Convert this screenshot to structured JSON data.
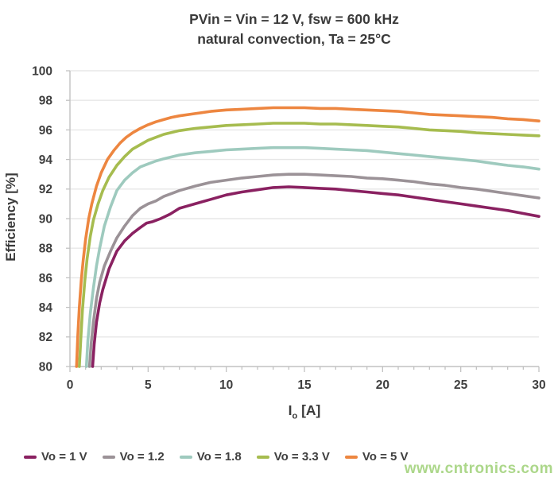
{
  "title": {
    "line1": "PVin = Vin = 12 V, fsw = 600 kHz",
    "line2": "natural convection, Ta = 25°C"
  },
  "watermark": {
    "text": "www.cntronics.com",
    "color": "#9ed075"
  },
  "chart_data": {
    "type": "line",
    "title": "PVin = Vin = 12 V, fsw = 600 kHz — natural convection, Ta = 25°C",
    "xlabel": "Io [A]",
    "xlabel_parts": {
      "base": "I",
      "sub": "o",
      "unit": " [A]"
    },
    "ylabel": "Efficiency [%]",
    "xlim": [
      0,
      30
    ],
    "ylim": [
      80,
      100
    ],
    "x_ticks": [
      0,
      5,
      10,
      15,
      20,
      25,
      30
    ],
    "x_minor_step": 1,
    "y_ticks": [
      80,
      82,
      84,
      86,
      88,
      90,
      92,
      94,
      96,
      98,
      100
    ],
    "grid": "horizontal",
    "legend_position": "bottom",
    "axis_color": "#c2c2c2",
    "grid_color": "#e7e7e7",
    "tick_text_color": "#3f3f3f",
    "series": [
      {
        "name": "Vo = 1 V",
        "color": "#8a2161",
        "points": [
          [
            1.45,
            80
          ],
          [
            1.55,
            81.5
          ],
          [
            1.7,
            83
          ],
          [
            1.9,
            84.3
          ],
          [
            2.1,
            85.2
          ],
          [
            2.5,
            86.6
          ],
          [
            3,
            87.8
          ],
          [
            3.5,
            88.5
          ],
          [
            4,
            89.0
          ],
          [
            4.5,
            89.4
          ],
          [
            4.9,
            89.7
          ],
          [
            5.3,
            89.8
          ],
          [
            5.8,
            90.0
          ],
          [
            6.4,
            90.3
          ],
          [
            7,
            90.7
          ],
          [
            7.5,
            90.85
          ],
          [
            8,
            91.0
          ],
          [
            9,
            91.3
          ],
          [
            10,
            91.6
          ],
          [
            11,
            91.8
          ],
          [
            12,
            91.95
          ],
          [
            13,
            92.1
          ],
          [
            14,
            92.15
          ],
          [
            15,
            92.1
          ],
          [
            16,
            92.05
          ],
          [
            17,
            92.0
          ],
          [
            18,
            91.9
          ],
          [
            19,
            91.8
          ],
          [
            20,
            91.7
          ],
          [
            21,
            91.6
          ],
          [
            22,
            91.45
          ],
          [
            23,
            91.3
          ],
          [
            24,
            91.15
          ],
          [
            25,
            91.0
          ],
          [
            26,
            90.85
          ],
          [
            27,
            90.7
          ],
          [
            28,
            90.55
          ],
          [
            29,
            90.35
          ],
          [
            30,
            90.15
          ]
        ]
      },
      {
        "name": "Vo = 1.2",
        "color": "#9b9297",
        "points": [
          [
            1.25,
            80
          ],
          [
            1.35,
            81.5
          ],
          [
            1.5,
            83
          ],
          [
            1.7,
            84.6
          ],
          [
            1.9,
            85.7
          ],
          [
            2.2,
            86.8
          ],
          [
            2.6,
            87.8
          ],
          [
            3,
            88.7
          ],
          [
            3.5,
            89.5
          ],
          [
            4,
            90.2
          ],
          [
            4.5,
            90.7
          ],
          [
            5,
            91.0
          ],
          [
            5.5,
            91.2
          ],
          [
            6,
            91.5
          ],
          [
            6.5,
            91.7
          ],
          [
            7,
            91.9
          ],
          [
            8,
            92.2
          ],
          [
            9,
            92.45
          ],
          [
            10,
            92.6
          ],
          [
            11,
            92.75
          ],
          [
            12,
            92.85
          ],
          [
            13,
            92.95
          ],
          [
            14,
            93.0
          ],
          [
            15,
            93.0
          ],
          [
            16,
            92.95
          ],
          [
            17,
            92.9
          ],
          [
            18,
            92.85
          ],
          [
            19,
            92.75
          ],
          [
            20,
            92.7
          ],
          [
            21,
            92.6
          ],
          [
            22,
            92.5
          ],
          [
            23,
            92.35
          ],
          [
            24,
            92.25
          ],
          [
            25,
            92.1
          ],
          [
            26,
            92.0
          ],
          [
            27,
            91.85
          ],
          [
            28,
            91.7
          ],
          [
            29,
            91.55
          ],
          [
            30,
            91.4
          ]
        ]
      },
      {
        "name": "Vo = 1.8",
        "color": "#9ecabe",
        "points": [
          [
            1.05,
            80
          ],
          [
            1.15,
            81.8
          ],
          [
            1.3,
            83.6
          ],
          [
            1.5,
            85.3
          ],
          [
            1.7,
            86.8
          ],
          [
            1.9,
            88.0
          ],
          [
            2.2,
            89.5
          ],
          [
            2.6,
            90.8
          ],
          [
            3,
            91.9
          ],
          [
            3.5,
            92.6
          ],
          [
            4,
            93.1
          ],
          [
            4.5,
            93.5
          ],
          [
            5,
            93.7
          ],
          [
            5.5,
            93.9
          ],
          [
            6,
            94.05
          ],
          [
            7,
            94.3
          ],
          [
            8,
            94.45
          ],
          [
            9,
            94.55
          ],
          [
            10,
            94.65
          ],
          [
            11,
            94.7
          ],
          [
            12,
            94.75
          ],
          [
            13,
            94.8
          ],
          [
            14,
            94.8
          ],
          [
            15,
            94.8
          ],
          [
            16,
            94.75
          ],
          [
            17,
            94.7
          ],
          [
            18,
            94.65
          ],
          [
            19,
            94.6
          ],
          [
            20,
            94.5
          ],
          [
            21,
            94.4
          ],
          [
            22,
            94.3
          ],
          [
            23,
            94.2
          ],
          [
            24,
            94.1
          ],
          [
            25,
            94.0
          ],
          [
            26,
            93.9
          ],
          [
            27,
            93.75
          ],
          [
            28,
            93.6
          ],
          [
            29,
            93.5
          ],
          [
            30,
            93.35
          ]
        ]
      },
      {
        "name": "Vo = 3.3 V",
        "color": "#a6bc4f",
        "points": [
          [
            0.6,
            80
          ],
          [
            0.7,
            82
          ],
          [
            0.8,
            83.8
          ],
          [
            0.95,
            85.8
          ],
          [
            1.1,
            87.3
          ],
          [
            1.3,
            88.8
          ],
          [
            1.5,
            89.9
          ],
          [
            1.8,
            91.0
          ],
          [
            2.1,
            91.9
          ],
          [
            2.5,
            92.8
          ],
          [
            3,
            93.6
          ],
          [
            3.5,
            94.2
          ],
          [
            4,
            94.7
          ],
          [
            4.5,
            95.0
          ],
          [
            5,
            95.3
          ],
          [
            5.5,
            95.5
          ],
          [
            6,
            95.7
          ],
          [
            7,
            95.95
          ],
          [
            8,
            96.1
          ],
          [
            9,
            96.2
          ],
          [
            10,
            96.3
          ],
          [
            11,
            96.35
          ],
          [
            12,
            96.4
          ],
          [
            13,
            96.45
          ],
          [
            14,
            96.45
          ],
          [
            15,
            96.45
          ],
          [
            16,
            96.4
          ],
          [
            17,
            96.4
          ],
          [
            18,
            96.35
          ],
          [
            19,
            96.3
          ],
          [
            20,
            96.25
          ],
          [
            21,
            96.2
          ],
          [
            22,
            96.1
          ],
          [
            23,
            96.0
          ],
          [
            24,
            95.95
          ],
          [
            25,
            95.9
          ],
          [
            26,
            95.8
          ],
          [
            27,
            95.75
          ],
          [
            28,
            95.7
          ],
          [
            29,
            95.65
          ],
          [
            30,
            95.6
          ]
        ]
      },
      {
        "name": "Vo = 5 V",
        "color": "#ed8640",
        "points": [
          [
            0.42,
            80
          ],
          [
            0.5,
            82
          ],
          [
            0.6,
            84
          ],
          [
            0.72,
            85.8
          ],
          [
            0.85,
            87.2
          ],
          [
            1,
            88.6
          ],
          [
            1.2,
            90.0
          ],
          [
            1.4,
            91.0
          ],
          [
            1.7,
            92.2
          ],
          [
            2,
            93.1
          ],
          [
            2.4,
            94.0
          ],
          [
            2.8,
            94.6
          ],
          [
            3.2,
            95.1
          ],
          [
            3.6,
            95.5
          ],
          [
            4,
            95.8
          ],
          [
            4.5,
            96.1
          ],
          [
            5,
            96.35
          ],
          [
            5.5,
            96.55
          ],
          [
            6,
            96.7
          ],
          [
            6.5,
            96.85
          ],
          [
            7,
            96.95
          ],
          [
            8,
            97.1
          ],
          [
            9,
            97.25
          ],
          [
            10,
            97.35
          ],
          [
            11,
            97.4
          ],
          [
            12,
            97.45
          ],
          [
            13,
            97.5
          ],
          [
            14,
            97.5
          ],
          [
            15,
            97.5
          ],
          [
            16,
            97.45
          ],
          [
            17,
            97.45
          ],
          [
            18,
            97.4
          ],
          [
            19,
            97.35
          ],
          [
            20,
            97.3
          ],
          [
            21,
            97.25
          ],
          [
            22,
            97.15
          ],
          [
            23,
            97.05
          ],
          [
            24,
            97.0
          ],
          [
            25,
            96.95
          ],
          [
            26,
            96.9
          ],
          [
            27,
            96.85
          ],
          [
            28,
            96.75
          ],
          [
            29,
            96.7
          ],
          [
            30,
            96.6
          ]
        ]
      }
    ]
  }
}
